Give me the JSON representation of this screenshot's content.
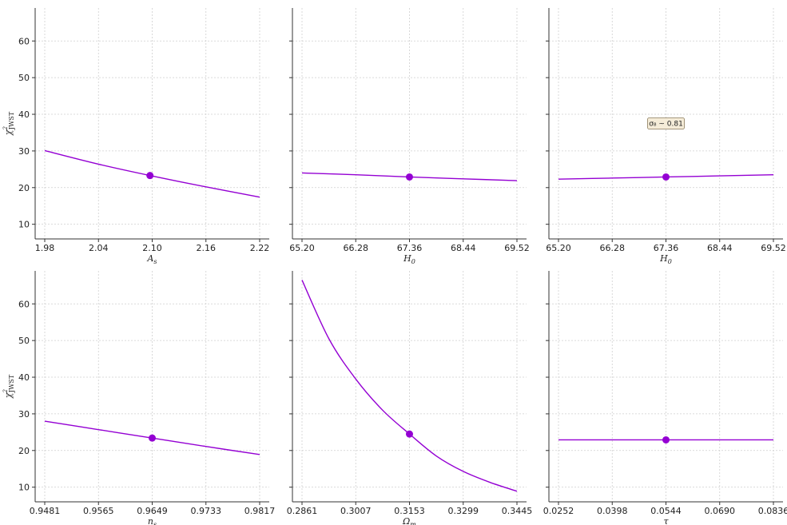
{
  "chart_data": [
    {
      "type": "line",
      "xlabel": "A_s",
      "ylabel": "χ²_JWST",
      "xticks": [
        "1.98",
        "2.04",
        "2.10",
        "2.16",
        "2.22"
      ],
      "yticks": [
        "10",
        "20",
        "30",
        "40",
        "50",
        "60"
      ],
      "xlim": [
        1.98,
        2.22
      ],
      "ylim": [
        6,
        69
      ],
      "x": [
        1.98,
        2.04,
        2.0975,
        2.16,
        2.22
      ],
      "y": [
        30.1,
        26.4,
        23.3,
        20.2,
        17.4
      ],
      "marker": {
        "x": 2.0975,
        "y": 23.3
      },
      "color": "#9400d3",
      "grid": true
    },
    {
      "type": "line",
      "xlabel": "H_0",
      "ylabel": "",
      "xticks": [
        "65.20",
        "66.28",
        "67.36",
        "68.44",
        "69.52"
      ],
      "yticks": [],
      "xlim": [
        65.2,
        69.52
      ],
      "ylim": [
        6,
        69
      ],
      "x": [
        65.2,
        66.28,
        67.36,
        68.44,
        69.52
      ],
      "y": [
        24.0,
        23.5,
        22.9,
        22.4,
        21.9
      ],
      "marker": {
        "x": 67.36,
        "y": 22.9
      },
      "color": "#9400d3",
      "grid": true
    },
    {
      "type": "line",
      "xlabel": "H_0",
      "ylabel": "",
      "xticks": [
        "65.20",
        "66.28",
        "67.36",
        "68.44",
        "69.52"
      ],
      "yticks": [],
      "xlim": [
        65.2,
        69.52
      ],
      "ylim": [
        6,
        69
      ],
      "x": [
        65.2,
        66.28,
        67.36,
        68.44,
        69.52
      ],
      "y": [
        22.3,
        22.6,
        22.9,
        23.2,
        23.5
      ],
      "marker": {
        "x": 67.36,
        "y": 22.9
      },
      "color": "#9400d3",
      "grid": true,
      "annotation": {
        "text": "σ₈ ~ 0.81",
        "x": 67.36,
        "y": 37.5
      }
    },
    {
      "type": "line",
      "xlabel": "n_s",
      "ylabel": "χ²_JWST",
      "xticks": [
        "0.9481",
        "0.9565",
        "0.9649",
        "0.9733",
        "0.9817"
      ],
      "yticks": [
        "10",
        "20",
        "30",
        "40",
        "50",
        "60"
      ],
      "xlim": [
        0.9481,
        0.9817
      ],
      "ylim": [
        6,
        69
      ],
      "x": [
        0.9481,
        0.9565,
        0.9649,
        0.9733,
        0.9817
      ],
      "y": [
        28.0,
        25.7,
        23.4,
        21.1,
        18.9
      ],
      "marker": {
        "x": 0.9649,
        "y": 23.4
      },
      "color": "#9400d3",
      "grid": true
    },
    {
      "type": "line",
      "xlabel": "Ω_m",
      "ylabel": "",
      "xticks": [
        "0.2861",
        "0.3007",
        "0.3153",
        "0.3299",
        "0.3445"
      ],
      "yticks": [],
      "xlim": [
        0.2861,
        0.3445
      ],
      "ylim": [
        6,
        69
      ],
      "x": [
        0.2861,
        0.2934,
        0.3007,
        0.308,
        0.3153,
        0.3226,
        0.3299,
        0.3372,
        0.3445
      ],
      "y": [
        66.5,
        50.5,
        39.5,
        31.0,
        24.5,
        18.5,
        14.3,
        11.3,
        8.9
      ],
      "marker": {
        "x": 0.3153,
        "y": 24.5
      },
      "color": "#9400d3",
      "grid": true
    },
    {
      "type": "line",
      "xlabel": "τ",
      "ylabel": "",
      "xticks": [
        "0.0252",
        "0.0398",
        "0.0544",
        "0.0690",
        "0.0836"
      ],
      "yticks": [],
      "xlim": [
        0.0252,
        0.0836
      ],
      "ylim": [
        6,
        69
      ],
      "x": [
        0.0252,
        0.0398,
        0.0544,
        0.069,
        0.0836
      ],
      "y": [
        22.9,
        22.9,
        22.9,
        22.9,
        22.9
      ],
      "marker": {
        "x": 0.0544,
        "y": 22.9
      },
      "color": "#9400d3",
      "grid": true
    }
  ]
}
